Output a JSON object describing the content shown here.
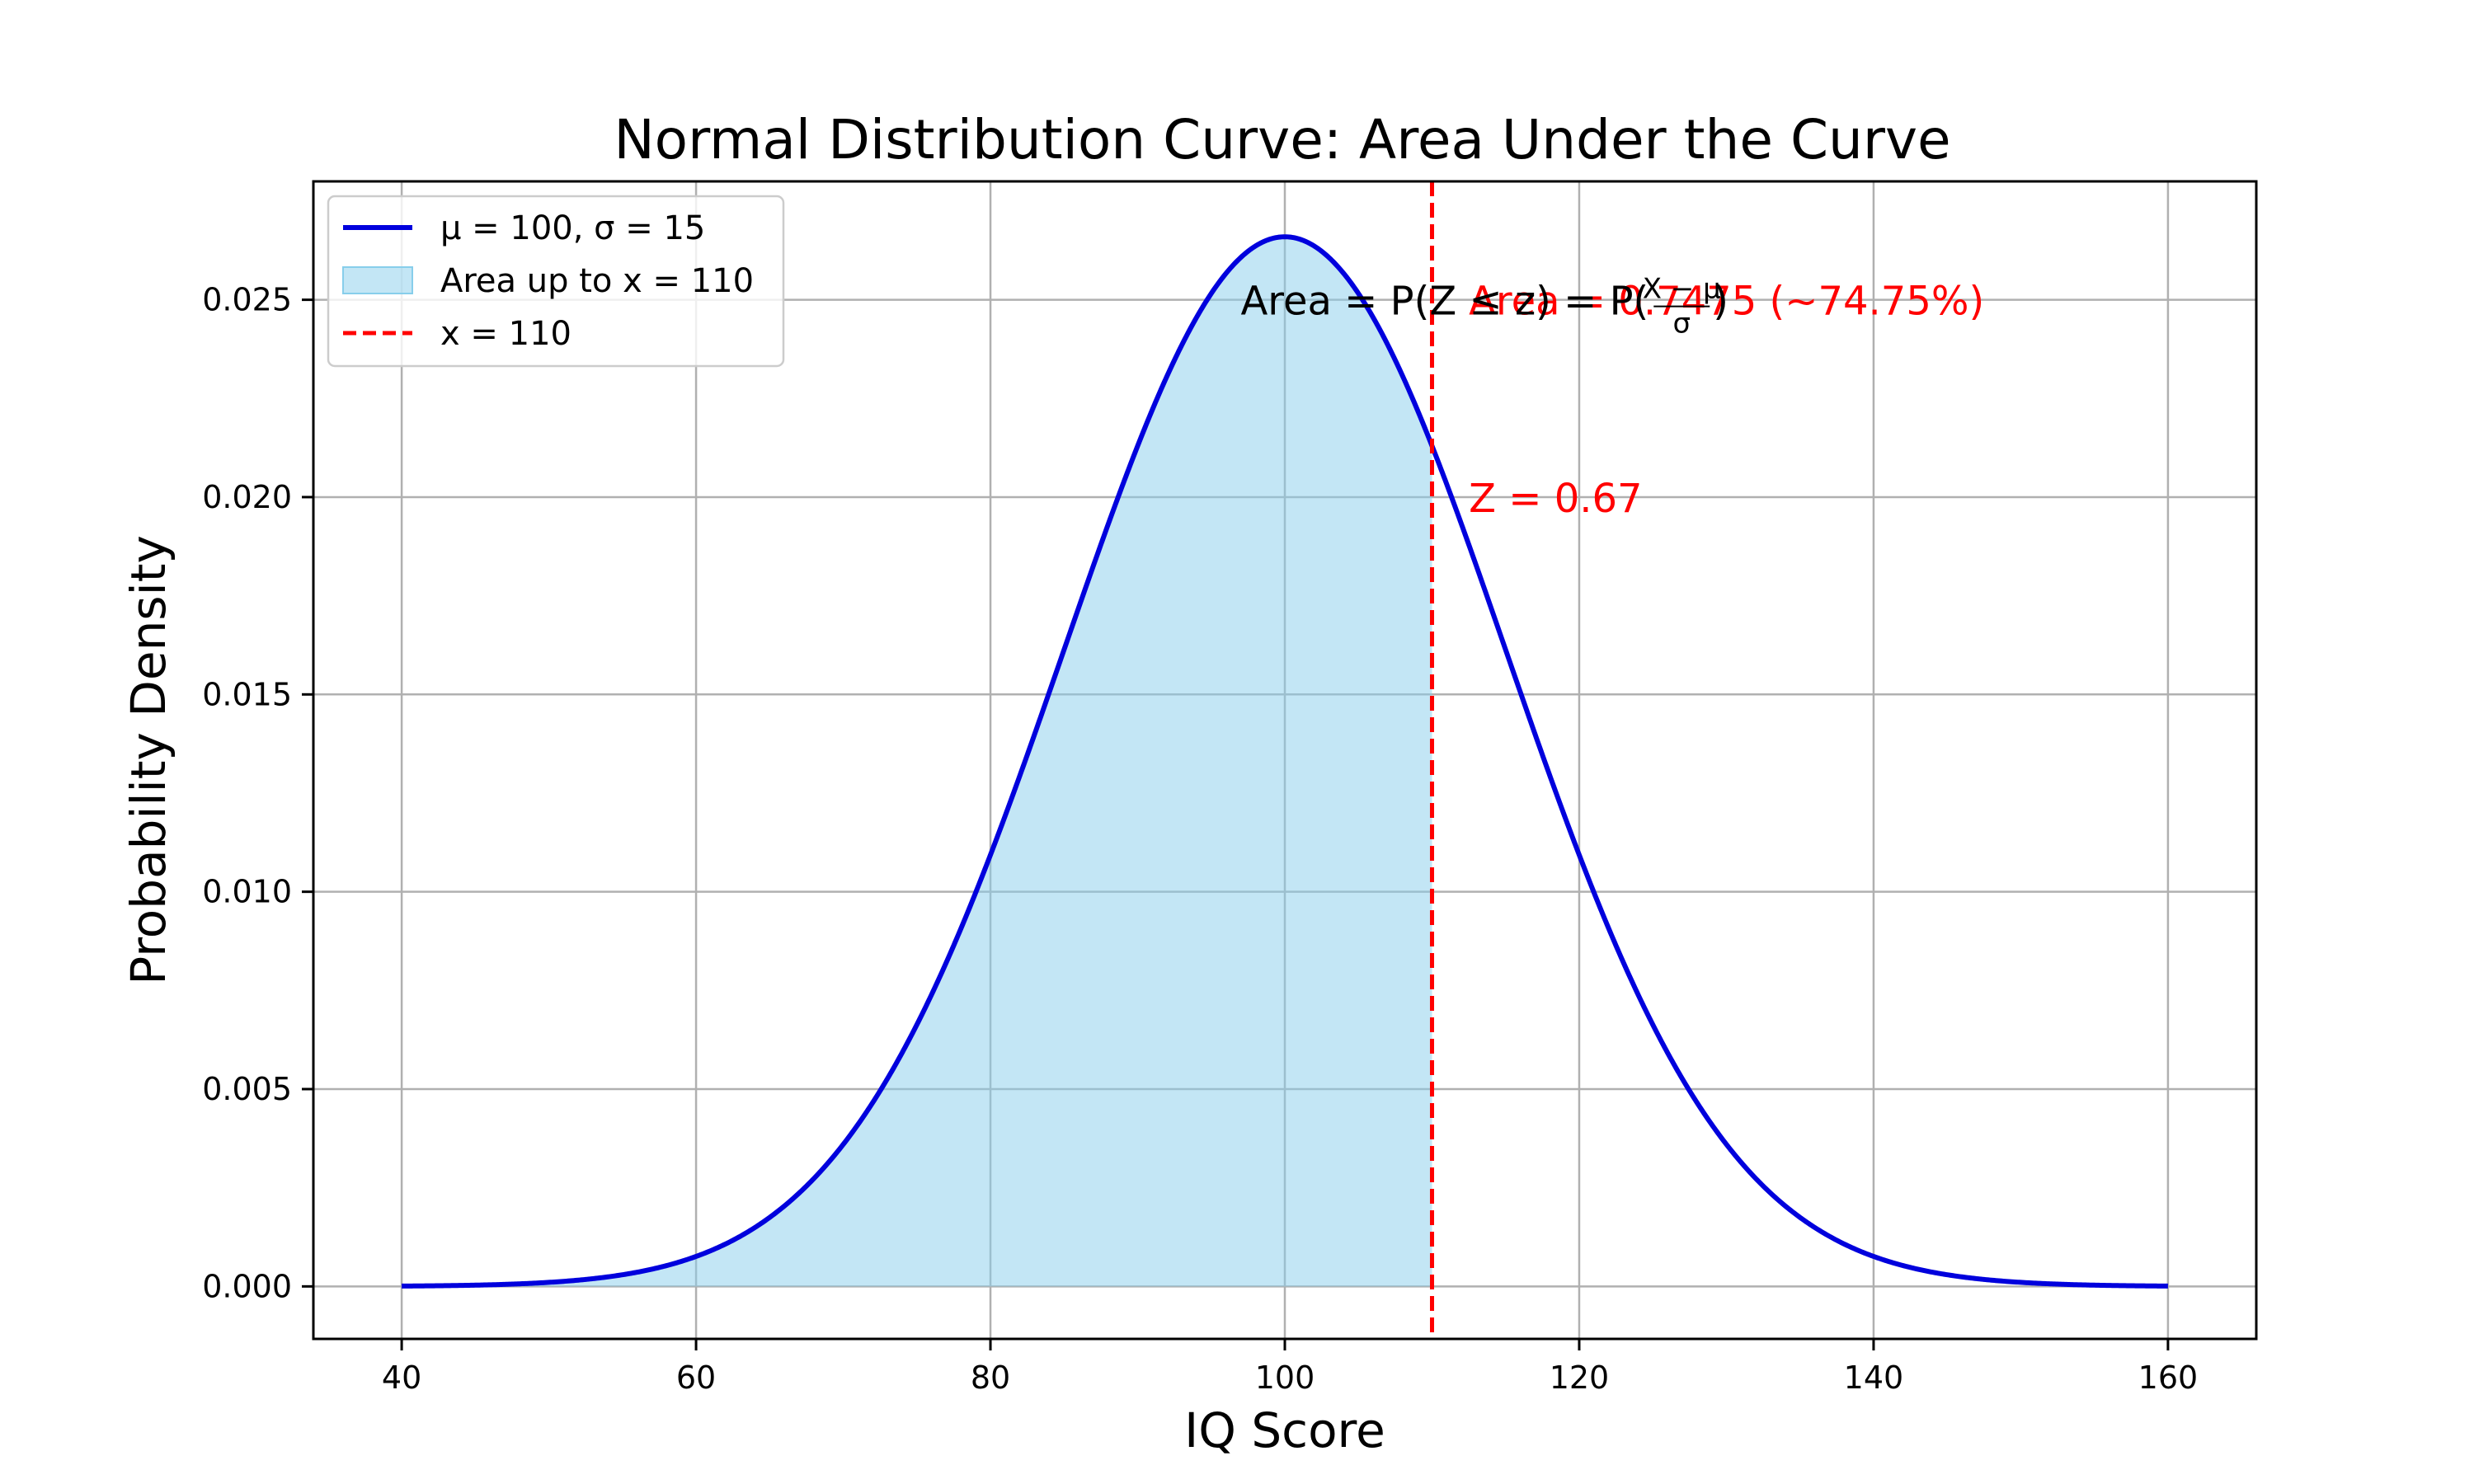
{
  "chart_data": {
    "type": "area",
    "title": "Normal Distribution Curve: Area Under the Curve",
    "xlabel": "IQ Score",
    "ylabel": "Probability Density",
    "xlim": [
      34,
      166
    ],
    "ylim": [
      -0.00133,
      0.028
    ],
    "x_ticks": [
      40,
      60,
      80,
      100,
      120,
      140,
      160
    ],
    "x_tick_labels": [
      "40",
      "60",
      "80",
      "100",
      "120",
      "140",
      "160"
    ],
    "y_ticks": [
      0.0,
      0.005,
      0.01,
      0.015,
      0.02,
      0.025
    ],
    "y_tick_labels": [
      "0.000",
      "0.005",
      "0.010",
      "0.015",
      "0.020",
      "0.025"
    ],
    "grid": true,
    "legend_position": "top-left",
    "distribution": {
      "mean": 100,
      "std": 15,
      "x_min": 40,
      "x_max": 160
    },
    "series": [
      {
        "name": "μ = 100, σ = 15",
        "kind": "line",
        "color": "#0000dd"
      },
      {
        "name": "Area up to x = 110",
        "kind": "fill",
        "color": "#87ceeb",
        "fill_to": 110
      },
      {
        "name": "x = 110",
        "kind": "vline",
        "x": 110,
        "color": "#ff0000",
        "style": "dashed"
      }
    ],
    "annotations": [
      {
        "text": "Area = 0.7475 (~74.75%)",
        "x": 112.5,
        "y": 0.025,
        "color": "#ff0000"
      },
      {
        "text": "Z = 0.67",
        "x": 112.5,
        "y": 0.02,
        "color": "#ff0000"
      },
      {
        "text": "Area = P(Z ≤ z) = P(",
        "fraction_numerator": "X − μ",
        "fraction_denominator": "σ",
        "closing": ")",
        "x": 97,
        "y": 0.025,
        "color": "#000000"
      }
    ]
  }
}
